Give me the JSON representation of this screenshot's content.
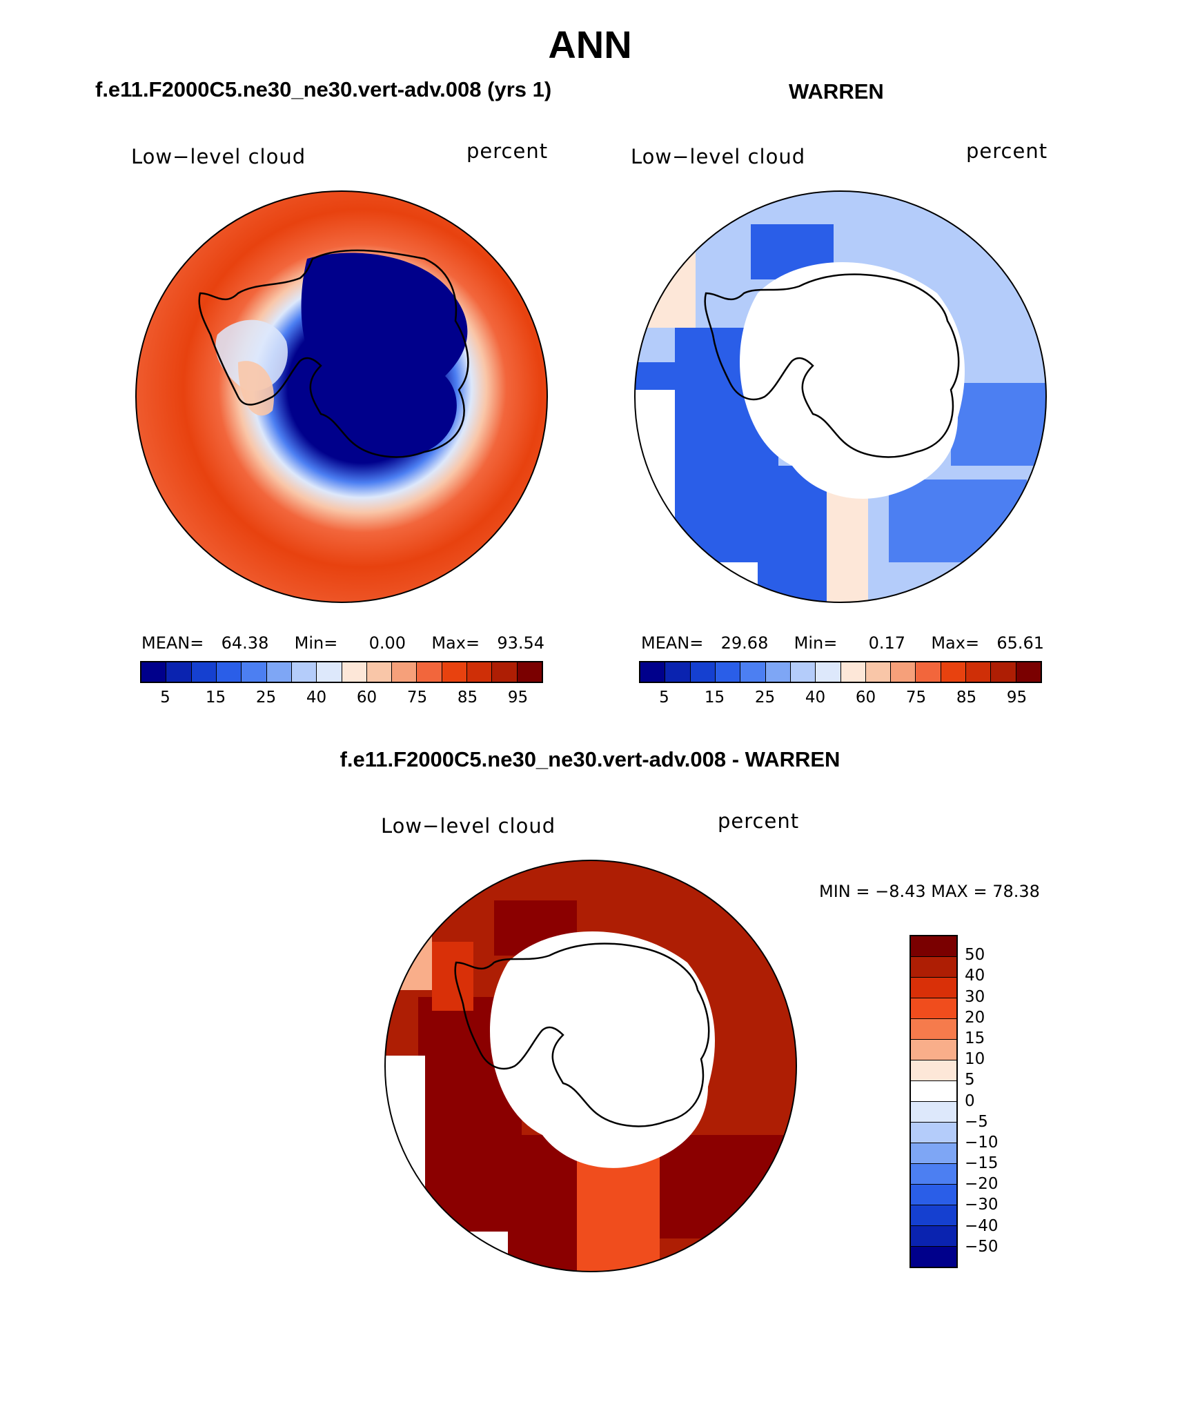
{
  "page": {
    "title": "ANN",
    "panel1_title": "f.e11.F2000C5.ne30_ne30.vert-adv.008 (yrs 1)",
    "panel2_title": "WARREN",
    "diff_title": "f.e11.F2000C5.ne30_ne30.vert-adv.008 - WARREN"
  },
  "panels": [
    {
      "variable": "Low−level cloud",
      "units": "percent",
      "mean_label": "MEAN=",
      "mean": "64.38",
      "min_label": "Min=",
      "min": "0.00",
      "max_label": "Max=",
      "max": "93.54"
    },
    {
      "variable": "Low−level cloud",
      "units": "percent",
      "mean_label": "MEAN=",
      "mean": "29.68",
      "min_label": "Min=",
      "min": "0.17",
      "max_label": "Max=",
      "max": "65.61"
    },
    {
      "variable": "Low−level cloud",
      "units": "percent",
      "minmax_text": "MIN =   −8.43  MAX =   78.38"
    }
  ],
  "colorbar_abs": {
    "colors": [
      "#00008b",
      "#0a23b0",
      "#1540d0",
      "#2a5ee8",
      "#4c7ff2",
      "#7ea6f5",
      "#b4ccfa",
      "#dde8fb",
      "#fde7d8",
      "#f9c6a8",
      "#f6a07a",
      "#f2663c",
      "#e8420f",
      "#cf2f07",
      "#ae1e04",
      "#7a0000"
    ],
    "ticks": [
      "5",
      "15",
      "25",
      "40",
      "60",
      "75",
      "85",
      "95"
    ]
  },
  "colorbar_diff": {
    "colors": [
      "#7a0000",
      "#ae1e04",
      "#d93008",
      "#f04d1d",
      "#f67b4c",
      "#f9ae8a",
      "#fde7d8",
      "#ffffff",
      "#dde8fb",
      "#b4ccfa",
      "#7ea6f5",
      "#4c7ff2",
      "#2a5ee8",
      "#1540d0",
      "#0a23b0",
      "#00008b"
    ],
    "ticks": [
      "50",
      "40",
      "30",
      "20",
      "15",
      "10",
      "5",
      "0",
      "−5",
      "−10",
      "−15",
      "−20",
      "−30",
      "−40",
      "−50"
    ]
  }
}
